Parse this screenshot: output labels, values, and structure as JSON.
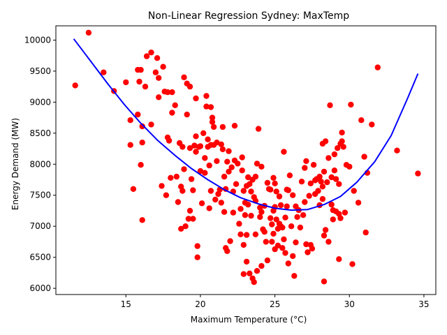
{
  "chart_data": {
    "type": "scatter",
    "title": "Non-Linear Regression Sydney: MaxTemp",
    "xlabel": "Maximum Temperature (°C)",
    "ylabel": "Energy Demand (MW)",
    "xlim": [
      10.3,
      35.8
    ],
    "ylim": [
      5900,
      10230
    ],
    "x_ticks": [
      15,
      20,
      25,
      30,
      35
    ],
    "y_ticks": [
      6000,
      6500,
      7000,
      7500,
      8000,
      8500,
      9000,
      9500,
      10000
    ],
    "grid": false,
    "scatter_color": "#ff0000",
    "fit_color": "#0000ff",
    "fit_curve": {
      "x": [
        11.5,
        12.7,
        13.8,
        14.9,
        16.0,
        17.1,
        18.3,
        19.4,
        20.5,
        21.6,
        22.7,
        23.9,
        25.0,
        26.1,
        27.2,
        28.3,
        29.4,
        30.5,
        31.7,
        32.8,
        33.9,
        34.6
      ],
      "y": [
        10020,
        9640,
        9290,
        8960,
        8660,
        8390,
        8140,
        7930,
        7750,
        7590,
        7460,
        7360,
        7290,
        7260,
        7270,
        7350,
        7480,
        7710,
        8040,
        8460,
        9060,
        9460
      ]
    },
    "points": [
      [
        11.6,
        9270
      ],
      [
        12.5,
        10120
      ],
      [
        13.5,
        9480
      ],
      [
        14.2,
        9180
      ],
      [
        15.0,
        9320
      ],
      [
        15.3,
        8710
      ],
      [
        15.3,
        8310
      ],
      [
        15.5,
        7600
      ],
      [
        15.8,
        9520
      ],
      [
        15.8,
        8800
      ],
      [
        15.9,
        9330
      ],
      [
        16.0,
        9520
      ],
      [
        16.0,
        7990
      ],
      [
        16.1,
        8610
      ],
      [
        16.1,
        8350
      ],
      [
        16.1,
        7100
      ],
      [
        16.3,
        9250
      ],
      [
        16.4,
        9740
      ],
      [
        16.7,
        9800
      ],
      [
        16.7,
        8640
      ],
      [
        17.0,
        9480
      ],
      [
        17.1,
        9710
      ],
      [
        17.2,
        9390
      ],
      [
        17.2,
        9080
      ],
      [
        17.4,
        7650
      ],
      [
        17.5,
        9570
      ],
      [
        17.6,
        9170
      ],
      [
        17.7,
        7500
      ],
      [
        17.8,
        9160
      ],
      [
        17.8,
        8430
      ],
      [
        17.9,
        8380
      ],
      [
        18.0,
        7780
      ],
      [
        18.1,
        9160
      ],
      [
        18.1,
        8830
      ],
      [
        18.3,
        8950
      ],
      [
        18.4,
        7800
      ],
      [
        18.5,
        7390
      ],
      [
        18.6,
        8340
      ],
      [
        18.7,
        7640
      ],
      [
        18.7,
        6960
      ],
      [
        18.8,
        8280
      ],
      [
        18.8,
        7570
      ],
      [
        18.9,
        9400
      ],
      [
        18.9,
        7920
      ],
      [
        19.0,
        7000
      ],
      [
        19.1,
        9300
      ],
      [
        19.1,
        8800
      ],
      [
        19.2,
        7120
      ],
      [
        19.3,
        9250
      ],
      [
        19.3,
        8260
      ],
      [
        19.3,
        7250
      ],
      [
        19.4,
        7760
      ],
      [
        19.5,
        7580
      ],
      [
        19.5,
        7120
      ],
      [
        19.6,
        8300
      ],
      [
        19.7,
        8200
      ],
      [
        19.7,
        8450
      ],
      [
        19.7,
        9060
      ],
      [
        19.8,
        6680
      ],
      [
        19.8,
        6500
      ],
      [
        19.9,
        8280
      ],
      [
        20.0,
        8290
      ],
      [
        20.0,
        7890
      ],
      [
        20.1,
        7370
      ],
      [
        20.2,
        8500
      ],
      [
        20.3,
        8100
      ],
      [
        20.3,
        7860
      ],
      [
        20.4,
        9100
      ],
      [
        20.4,
        8930
      ],
      [
        20.5,
        8400
      ],
      [
        20.5,
        8280
      ],
      [
        20.6,
        7980
      ],
      [
        20.6,
        7290
      ],
      [
        20.7,
        8920
      ],
      [
        20.7,
        8310
      ],
      [
        20.7,
        7570
      ],
      [
        20.8,
        8750
      ],
      [
        20.8,
        8680
      ],
      [
        20.9,
        8600
      ],
      [
        20.9,
        8310
      ],
      [
        21.0,
        7430
      ],
      [
        21.1,
        8350
      ],
      [
        21.1,
        8050
      ],
      [
        21.2,
        7520
      ],
      [
        21.3,
        7590
      ],
      [
        21.4,
        8320
      ],
      [
        21.4,
        7380
      ],
      [
        21.5,
        8600
      ],
      [
        21.5,
        8240
      ],
      [
        21.6,
        7800
      ],
      [
        21.6,
        7230
      ],
      [
        21.7,
        6650
      ],
      [
        21.7,
        7600
      ],
      [
        21.8,
        8040
      ],
      [
        21.8,
        6600
      ],
      [
        21.9,
        8210
      ],
      [
        21.9,
        7880
      ],
      [
        22.0,
        6760
      ],
      [
        22.1,
        7950
      ],
      [
        22.2,
        7220
      ],
      [
        22.2,
        7560
      ],
      [
        22.3,
        8620
      ],
      [
        22.3,
        8060
      ],
      [
        22.4,
        7680
      ],
      [
        22.5,
        8010
      ],
      [
        22.6,
        7040
      ],
      [
        22.7,
        7280
      ],
      [
        22.7,
        6870
      ],
      [
        22.8,
        8110
      ],
      [
        22.8,
        7900
      ],
      [
        22.9,
        7570
      ],
      [
        22.9,
        6700
      ],
      [
        22.9,
        6230
      ],
      [
        23.0,
        7380
      ],
      [
        23.0,
        7180
      ],
      [
        23.1,
        7650
      ],
      [
        23.1,
        6860
      ],
      [
        23.1,
        6430
      ],
      [
        23.2,
        7790
      ],
      [
        23.2,
        7350
      ],
      [
        23.3,
        7680
      ],
      [
        23.3,
        6240
      ],
      [
        23.4,
        7560
      ],
      [
        23.4,
        7170
      ],
      [
        23.5,
        7750
      ],
      [
        23.5,
        6160
      ],
      [
        23.6,
        7470
      ],
      [
        23.6,
        6100
      ],
      [
        23.7,
        7800
      ],
      [
        23.7,
        7410
      ],
      [
        23.7,
        6870
      ],
      [
        23.8,
        8010
      ],
      [
        23.8,
        6280
      ],
      [
        23.9,
        8570
      ],
      [
        24.0,
        7300
      ],
      [
        24.0,
        7150
      ],
      [
        24.1,
        7960
      ],
      [
        24.1,
        7230
      ],
      [
        24.1,
        6360
      ],
      [
        24.2,
        6950
      ],
      [
        24.3,
        7330
      ],
      [
        24.3,
        6910
      ],
      [
        24.4,
        6750
      ],
      [
        24.5,
        7700
      ],
      [
        24.5,
        6450
      ],
      [
        24.6,
        7600
      ],
      [
        24.7,
        7590
      ],
      [
        24.7,
        7130
      ],
      [
        24.8,
        7030
      ],
      [
        24.8,
        6750
      ],
      [
        24.9,
        7780
      ],
      [
        24.9,
        7250
      ],
      [
        24.9,
        6880
      ],
      [
        25.0,
        7690
      ],
      [
        25.0,
        7310
      ],
      [
        25.0,
        6630
      ],
      [
        25.1,
        7560
      ],
      [
        25.1,
        7110
      ],
      [
        25.2,
        6960
      ],
      [
        25.2,
        6690
      ],
      [
        25.3,
        7480
      ],
      [
        25.3,
        7040
      ],
      [
        25.4,
        7340
      ],
      [
        25.4,
        7000
      ],
      [
        25.5,
        6980
      ],
      [
        25.5,
        6650
      ],
      [
        25.6,
        8200
      ],
      [
        25.6,
        6790
      ],
      [
        25.7,
        7140
      ],
      [
        25.7,
        6570
      ],
      [
        25.8,
        7590
      ],
      [
        25.8,
        7320
      ],
      [
        25.9,
        7580
      ],
      [
        25.9,
        6400
      ],
      [
        26.0,
        7820
      ],
      [
        26.1,
        7000
      ],
      [
        26.2,
        7500
      ],
      [
        26.2,
        6520
      ],
      [
        26.3,
        6200
      ],
      [
        26.4,
        7320
      ],
      [
        26.4,
        6740
      ],
      [
        26.5,
        7150
      ],
      [
        26.6,
        7260
      ],
      [
        26.7,
        6980
      ],
      [
        26.8,
        7720
      ],
      [
        26.9,
        7180
      ],
      [
        27.0,
        7390
      ],
      [
        27.0,
        7940
      ],
      [
        27.1,
        8050
      ],
      [
        27.1,
        6710
      ],
      [
        27.2,
        6580
      ],
      [
        27.3,
        7490
      ],
      [
        27.4,
        7690
      ],
      [
        27.4,
        6700
      ],
      [
        27.5,
        6640
      ],
      [
        27.6,
        7990
      ],
      [
        27.7,
        7740
      ],
      [
        27.7,
        7520
      ],
      [
        27.8,
        7760
      ],
      [
        27.9,
        7570
      ],
      [
        28.0,
        7340
      ],
      [
        28.0,
        7800
      ],
      [
        28.1,
        7720
      ],
      [
        28.2,
        8330
      ],
      [
        28.2,
        7640
      ],
      [
        28.2,
        7440
      ],
      [
        28.3,
        7880
      ],
      [
        28.3,
        6850
      ],
      [
        28.3,
        6110
      ],
      [
        28.4,
        8370
      ],
      [
        28.4,
        6940
      ],
      [
        28.5,
        7710
      ],
      [
        28.6,
        6750
      ],
      [
        28.6,
        8100
      ],
      [
        28.7,
        8950
      ],
      [
        28.8,
        7790
      ],
      [
        28.8,
        7350
      ],
      [
        28.9,
        7110
      ],
      [
        28.9,
        7260
      ],
      [
        29.0,
        8160
      ],
      [
        29.0,
        7900
      ],
      [
        29.1,
        7760
      ],
      [
        29.1,
        7240
      ],
      [
        29.2,
        8260
      ],
      [
        29.3,
        7680
      ],
      [
        29.3,
        7200
      ],
      [
        29.3,
        6470
      ],
      [
        29.4,
        8330
      ],
      [
        29.4,
        7130
      ],
      [
        29.5,
        8510
      ],
      [
        29.5,
        8370
      ],
      [
        29.6,
        8280
      ],
      [
        29.7,
        7220
      ],
      [
        29.8,
        7990
      ],
      [
        30.0,
        7960
      ],
      [
        30.1,
        8960
      ],
      [
        30.2,
        6390
      ],
      [
        30.3,
        7570
      ],
      [
        30.6,
        7380
      ],
      [
        30.8,
        8710
      ],
      [
        31.0,
        8120
      ],
      [
        31.1,
        6900
      ],
      [
        31.2,
        7860
      ],
      [
        31.5,
        8640
      ],
      [
        31.9,
        9560
      ],
      [
        33.2,
        8220
      ],
      [
        34.6,
        7850
      ]
    ]
  }
}
